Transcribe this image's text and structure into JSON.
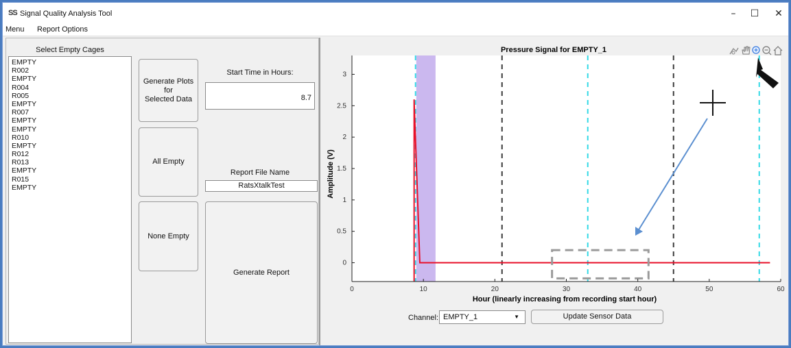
{
  "window": {
    "icon": "SS",
    "title": "Signal Quality Analysis Tool",
    "minimize": "–",
    "maximize": "☐",
    "close": "✕"
  },
  "menubar": {
    "items": [
      "Menu",
      "Report Options"
    ]
  },
  "left_panel": {
    "list_title": "Select Empty Cages",
    "cages": [
      "EMPTY",
      "R002",
      "EMPTY",
      "R004",
      "R005",
      "EMPTY",
      "R007",
      "EMPTY",
      "EMPTY",
      "R010",
      "EMPTY",
      "R012",
      "R013",
      "EMPTY",
      "R015",
      "EMPTY"
    ],
    "btn_generate_plots": "Generate Plots\nfor\nSelected Data",
    "btn_all_empty": "All Empty",
    "btn_none_empty": "None Empty",
    "start_time_label": "Start Time in Hours:",
    "start_time_value": "8.7",
    "report_file_label": "Report File Name",
    "report_file_value": "RatsXtalkTest",
    "btn_generate_report": "Generate Report"
  },
  "right_panel": {
    "toolbar_icons": [
      "brush-icon",
      "pan-hand-icon",
      "zoom-in-icon",
      "zoom-out-icon",
      "home-icon"
    ],
    "channel_label": "Channel:",
    "channel_value": "EMPTY_1",
    "btn_update": "Update Sensor Data"
  },
  "colors": {
    "signal": "#e8102a",
    "cyan_line": "#33d9e6",
    "dashed_line": "#3a3a3a",
    "shaded_region": "#cbb8ef",
    "annotation_arrow": "#5b8fd0",
    "zoom_box": "#9a9a9a"
  },
  "chart_data": {
    "type": "line",
    "title": "Pressure Signal for EMPTY_1",
    "xlabel": "Hour (linearly increasing from recording start hour)",
    "ylabel": "Amplitude (V)",
    "xlim": [
      0,
      60
    ],
    "ylim": [
      -0.3,
      3.3
    ],
    "xticks": [
      0,
      10,
      20,
      30,
      40,
      50,
      60
    ],
    "yticks": [
      0,
      0.5,
      1,
      1.5,
      2,
      2.5,
      3
    ],
    "grid": false,
    "series": [
      {
        "x": [
          8.7,
          8.7,
          9.5,
          20,
          30,
          40,
          50,
          58.5
        ],
        "y": [
          -0.3,
          2.6,
          0,
          0,
          0,
          0,
          0,
          0
        ]
      }
    ],
    "shaded_region": [
      9.0,
      11.7
    ],
    "cyan_dashed_lines_x": [
      8.9,
      33,
      57
    ],
    "black_dashed_lines_x": [
      21,
      45
    ],
    "zoom_box_x": [
      28,
      41.5
    ],
    "zoom_box_y": [
      -0.25,
      0.2
    ]
  }
}
